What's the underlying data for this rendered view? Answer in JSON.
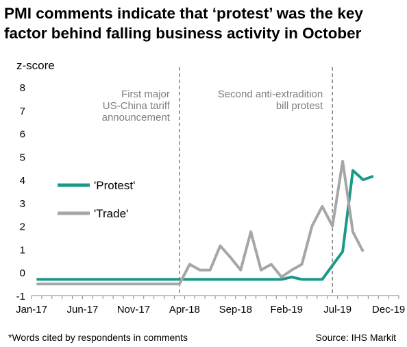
{
  "title_lines": [
    "PMI comments indicate that ‘protest’ was the key",
    "factor behind falling business activity in October"
  ],
  "footnote": "*Words cited by respondents in comments",
  "source": "Source: IHS Markit",
  "colors": {
    "protest": "#1a9988",
    "trade": "#a6a6a6",
    "event_line": "#808080",
    "annotation_text": "#7f7f7f"
  },
  "chart_data": {
    "type": "line",
    "ylabel": "z-score",
    "ylim": [
      -1,
      8
    ],
    "yticks": [
      -1,
      0,
      1,
      2,
      3,
      4,
      5,
      6,
      7,
      8
    ],
    "x_unit": "month",
    "xlim": [
      "2017-01",
      "2019-12"
    ],
    "xticks": [
      {
        "label": "Jan-17",
        "value": "2017-01"
      },
      {
        "label": "Jun-17",
        "value": "2017-06"
      },
      {
        "label": "Nov-17",
        "value": "2017-11"
      },
      {
        "label": "Apr-18",
        "value": "2018-04"
      },
      {
        "label": "Sep-18",
        "value": "2018-09"
      },
      {
        "label": "Feb-19",
        "value": "2019-02"
      },
      {
        "label": "Jul-19",
        "value": "2019-07"
      },
      {
        "label": "Dec-19",
        "value": "2019-12"
      }
    ],
    "legend": {
      "placement": "left"
    },
    "series": [
      {
        "name": "'Protest'",
        "color": "#1a9988",
        "points": [
          [
            "2017-01",
            -0.3
          ],
          [
            "2017-02",
            -0.3
          ],
          [
            "2017-03",
            -0.3
          ],
          [
            "2017-04",
            -0.3
          ],
          [
            "2017-05",
            -0.3
          ],
          [
            "2017-06",
            -0.3
          ],
          [
            "2017-07",
            -0.3
          ],
          [
            "2017-08",
            -0.3
          ],
          [
            "2017-09",
            -0.3
          ],
          [
            "2017-10",
            -0.3
          ],
          [
            "2017-11",
            -0.3
          ],
          [
            "2017-12",
            -0.3
          ],
          [
            "2018-01",
            -0.3
          ],
          [
            "2018-02",
            -0.3
          ],
          [
            "2018-03",
            -0.3
          ],
          [
            "2018-04",
            -0.3
          ],
          [
            "2018-05",
            -0.3
          ],
          [
            "2018-06",
            -0.3
          ],
          [
            "2018-07",
            -0.3
          ],
          [
            "2018-08",
            -0.3
          ],
          [
            "2018-09",
            -0.3
          ],
          [
            "2018-10",
            -0.3
          ],
          [
            "2018-11",
            -0.3
          ],
          [
            "2018-12",
            -0.3
          ],
          [
            "2019-01",
            -0.3
          ],
          [
            "2019-02",
            -0.2
          ],
          [
            "2019-03",
            -0.3
          ],
          [
            "2019-04",
            -0.3
          ],
          [
            "2019-05",
            -0.3
          ],
          [
            "2019-06",
            0.3
          ],
          [
            "2019-07",
            0.9
          ],
          [
            "2019-08",
            4.4
          ],
          [
            "2019-09",
            4.0
          ],
          [
            "2019-10",
            4.15
          ]
        ]
      },
      {
        "name": "'Trade'",
        "color": "#a6a6a6",
        "points": [
          [
            "2017-01",
            -0.5
          ],
          [
            "2017-02",
            -0.5
          ],
          [
            "2017-03",
            -0.5
          ],
          [
            "2017-04",
            -0.5
          ],
          [
            "2017-05",
            -0.5
          ],
          [
            "2017-06",
            -0.5
          ],
          [
            "2017-07",
            -0.5
          ],
          [
            "2017-08",
            -0.5
          ],
          [
            "2017-09",
            -0.5
          ],
          [
            "2017-10",
            -0.5
          ],
          [
            "2017-11",
            -0.5
          ],
          [
            "2017-12",
            -0.5
          ],
          [
            "2018-01",
            -0.5
          ],
          [
            "2018-02",
            -0.5
          ],
          [
            "2018-03",
            -0.5
          ],
          [
            "2018-04",
            0.35
          ],
          [
            "2018-05",
            0.1
          ],
          [
            "2018-06",
            0.1
          ],
          [
            "2018-07",
            1.15
          ],
          [
            "2018-08",
            0.65
          ],
          [
            "2018-09",
            0.1
          ],
          [
            "2018-10",
            1.75
          ],
          [
            "2018-11",
            0.1
          ],
          [
            "2018-12",
            0.35
          ],
          [
            "2019-01",
            -0.2
          ],
          [
            "2019-02",
            0.1
          ],
          [
            "2019-03",
            0.35
          ],
          [
            "2019-04",
            2.0
          ],
          [
            "2019-05",
            2.85
          ],
          [
            "2019-06",
            2.0
          ],
          [
            "2019-07",
            4.8
          ],
          [
            "2019-08",
            1.75
          ],
          [
            "2019-09",
            0.9
          ]
        ]
      }
    ],
    "events": [
      {
        "date": "2018-03",
        "label_lines": [
          "First major",
          "US-China tariff",
          "announcement"
        ],
        "label_side": "left"
      },
      {
        "date": "2019-06",
        "label_lines": [
          "Second anti-extradition",
          "bill protest"
        ],
        "label_side": "left"
      }
    ]
  }
}
